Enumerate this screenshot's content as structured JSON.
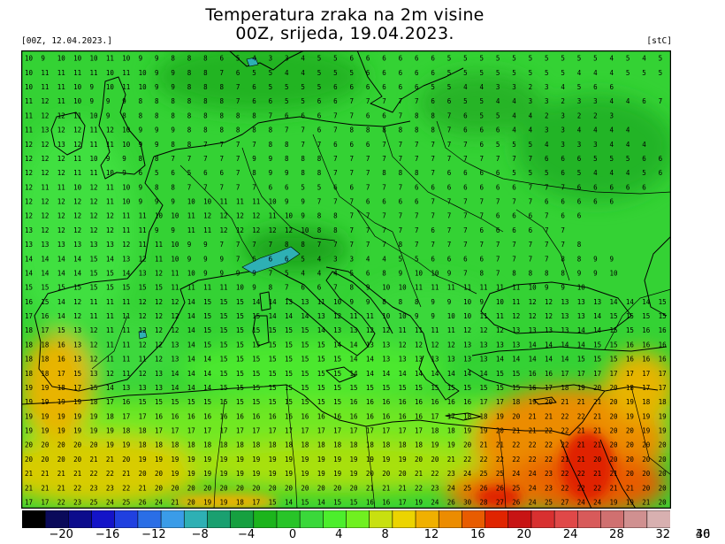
{
  "title_line1": "Temperatura zraka na 2m visine",
  "title_line2": "00Z, srijeda, 19.04.2023.",
  "init_label": "[00Z, 12.04.2023.]",
  "unit_label": "[stC]",
  "colorbar": {
    "colors": [
      "#000000",
      "#0a0a5a",
      "#0c0c8c",
      "#1414c8",
      "#2040e0",
      "#2a6ee6",
      "#3a9ce8",
      "#2eb0b4",
      "#1aa070",
      "#16a040",
      "#1cb41c",
      "#28c428",
      "#3ad83a",
      "#4cee2c",
      "#70f020",
      "#c8e010",
      "#ecd400",
      "#f0b000",
      "#ec8c00",
      "#e85c00",
      "#e02400",
      "#c81414",
      "#d83030",
      "#e04848",
      "#d85a5a",
      "#d07070",
      "#d09090",
      "#d8b0b0"
    ],
    "ticks": [
      "−20",
      "−16",
      "−12",
      "−8",
      "−4",
      "0",
      "4",
      "8",
      "12",
      "16",
      "20",
      "24",
      "28",
      "32",
      "36",
      "40"
    ]
  },
  "map_grid_values": [
    "10 9 10 10 10 11 10 9 9 8 8 8 6 5 4 3 3 4 5 5 6 6 6 6 6 6 5 5 5 5 5 5 5 5 5 5 4 5 4 5",
    "10 11 11 11 11 10 11 10 9 9 8 8 7 6 5 5 4 4 5 5 5 6 6 6 6 6 5 5 5 5 5 5 5 5 4 4 4 5 5 5",
    "10 11 11 10 9 10 11 10 9 9 8 8 8 7 6 5 5 5 5 6 6 6 6 6 6 5 5 4 4 3 3 2 3 4 5 6 6",
    "11 12 11 10 9 9 9 8 8 8 8 8 8 7 6 6 5 5 6 6 7 7 7 7 7 6 6 5 5 4 4 3 3 2 3 3 4 4 6 7",
    "11 12 12 11 10 9 8 8 8 8 8 8 8 8 8 7 6 6 6 7 7 6 6 7 8 8 7 6 5 5 4 4 2 3 2 2 3",
    "11 13 12 12 11 12 10 9 9 9 8 8 8 8 8 8 7 7 6 7 8 8 8 8 8 8 7 6 6 6 4 4 3 3 4 4 4 4",
    "12 12 13 12 11 11 10 9 9 8 8 7 7 7 7 8 8 7 7 6 6 6 7 7 7 7 7 7 6 5 5 5 4 3 3 3 4 4 4",
    "12 12 12 11 10 9 9 8 8 7 7 7 7 7 9 9 8 8 8 7 7 7 7 7 7 7 7 7 7 7 7 7 6 6 6 5 5 5 6 6",
    "12 12 12 11 11 10 9 6 5 6 5 6 6 7 8 9 9 8 8 7 7 7 8 8 8 7 6 6 6 6 5 5 5 6 5 4 4 4 5 6",
    "12 11 11 10 12 11 10 9 8 8 7 7 7 7 7 6 6 5 5 6 6 7 7 7 6 6 6 6 6 6 6 7 7 7 6 6 6 6 6",
    "12 12 12 12 12 11 10 9 9 9 10 10 11 11 11 10 9 9 7 7 7 6 6 6 6 7 7 7 7 7 7 7 6 6 6 6 6",
    "12 12 12 12 12 12 11 11 10 10 11 12 12 12 12 11 10 9 8 8 7 7 7 7 7 7 7 7 7 6 6 6 7 6 6",
    "13 12 12 12 12 12 11 11 9 9 11 11 12 12 12 12 12 10 8 8 7 7 7 7 7 6 7 7 6 6 6 6 7 7",
    "13 13 13 13 13 13 12 11 11 10 9 9 7 7 7 7 8 8 7 7 7 7 7 8 7 7 7 7 7 7 7 7 7 7 8",
    "14 14 14 14 15 14 13 12 11 10 9 9 9 7 6 6 6 5 4 3 3 4 4 5 5 6 6 6 6 7 7 7 7 8 8 9 9",
    "14 14 14 14 15 15 14 13 12 11 10 9 9 9 9 7 5 4 4 4 5 6 8 9 10 10 9 7 8 7 8 8 8 8 9 9 10",
    "15 15 15 15 15 15 15 15 15 11 11 11 11 10 9 8 7 6 6 7 8 9 10 10 11 11 11 11 11 11 11 10 9 9 10",
    "16 15 14 12 11 11 11 12 12 12 14 15 15 15 14 14 13 13 11 10 9 9 8 8 8 9 9 10 9 10 11 12 12 13 13 13 14 14 14 15",
    "17 16 14 12 11 11 11 12 12 12 14 15 15 15 15 14 14 14 13 12 11 11 10 10 9 9 10 10 11 11 12 12 12 13 13 14 15 15 15 15",
    "18 17 15 13 12 11 11 12 12 12 14 15 15 15 15 15 15 15 14 13 13 12 12 11 11 11 11 12 12 12 13 13 13 13 14 14 15 15 16 16",
    "18 18 16 13 12 11 11 12 12 13 14 15 15 15 15 15 15 15 15 14 14 13 13 12 12 12 12 13 13 13 13 14 14 14 14 15 15 16 16 16",
    "18 18 16 13 12 11 11 11 12 13 14 14 15 15 15 15 15 15 15 15 14 14 13 13 13 13 13 13 13 14 14 14 14 14 15 15 15 16 16 16",
    "18 18 17 15 13 12 11 12 13 14 14 14 15 15 15 15 15 15 15 15 14 14 14 14 14 14 14 14 14 15 15 16 16 17 17 17 17 17 17 17",
    "19 19 18 17 15 14 13 13 13 14 14 14 15 15 15 15 15 15 15 15 15 15 15 15 15 15 15 15 15 15 15 16 17 18 19 20 20 18 17 17",
    "19 19 19 19 18 17 16 15 15 15 15 15 15 15 15 15 15 15 15 15 16 16 16 16 16 16 16 16 17 17 18 19 20 21 21 21 20 19 18 18",
    "19 19 19 19 19 18 17 17 16 16 16 16 16 16 16 16 16 16 16 16 16 16 16 16 16 17 17 18 18 19 20 21 21 22 22 21 20 19 19 19",
    "19 19 19 19 19 19 18 18 17 17 17 17 17 17 17 17 17 17 17 17 17 17 17 17 17 18 18 19 19 20 21 21 22 22 21 21 20 20 19 19",
    "20 20 20 20 20 19 19 18 18 18 18 18 18 18 18 18 18 18 18 18 18 18 18 18 18 19 19 20 21 21 22 22 22 22 21 21 20 20 20 20",
    "20 20 20 20 21 21 20 19 19 19 19 19 19 19 19 19 19 19 19 19 19 19 19 19 20 20 21 22 22 22 22 22 22 21 21 20 20 20 20 20",
    "21 21 21 21 22 22 21 20 20 19 19 19 19 19 19 19 19 19 19 19 19 20 20 20 21 22 23 24 25 25 24 24 23 22 22 21 21 20 20 20",
    "21 21 21 22 23 23 22 21 20 20 20 20 20 20 20 20 20 20 20 20 20 21 21 21 22 23 24 25 26 26 25 24 23 22 22 22 21 21 20 20",
    "17 17 22 23 25 24 25 26 24 21 20 19 19 18 17 15 14 15 14 15 15 16 16 17 19 24 26 30 28 27 26 24 25 27 24 24 19 19 21 20"
  ]
}
